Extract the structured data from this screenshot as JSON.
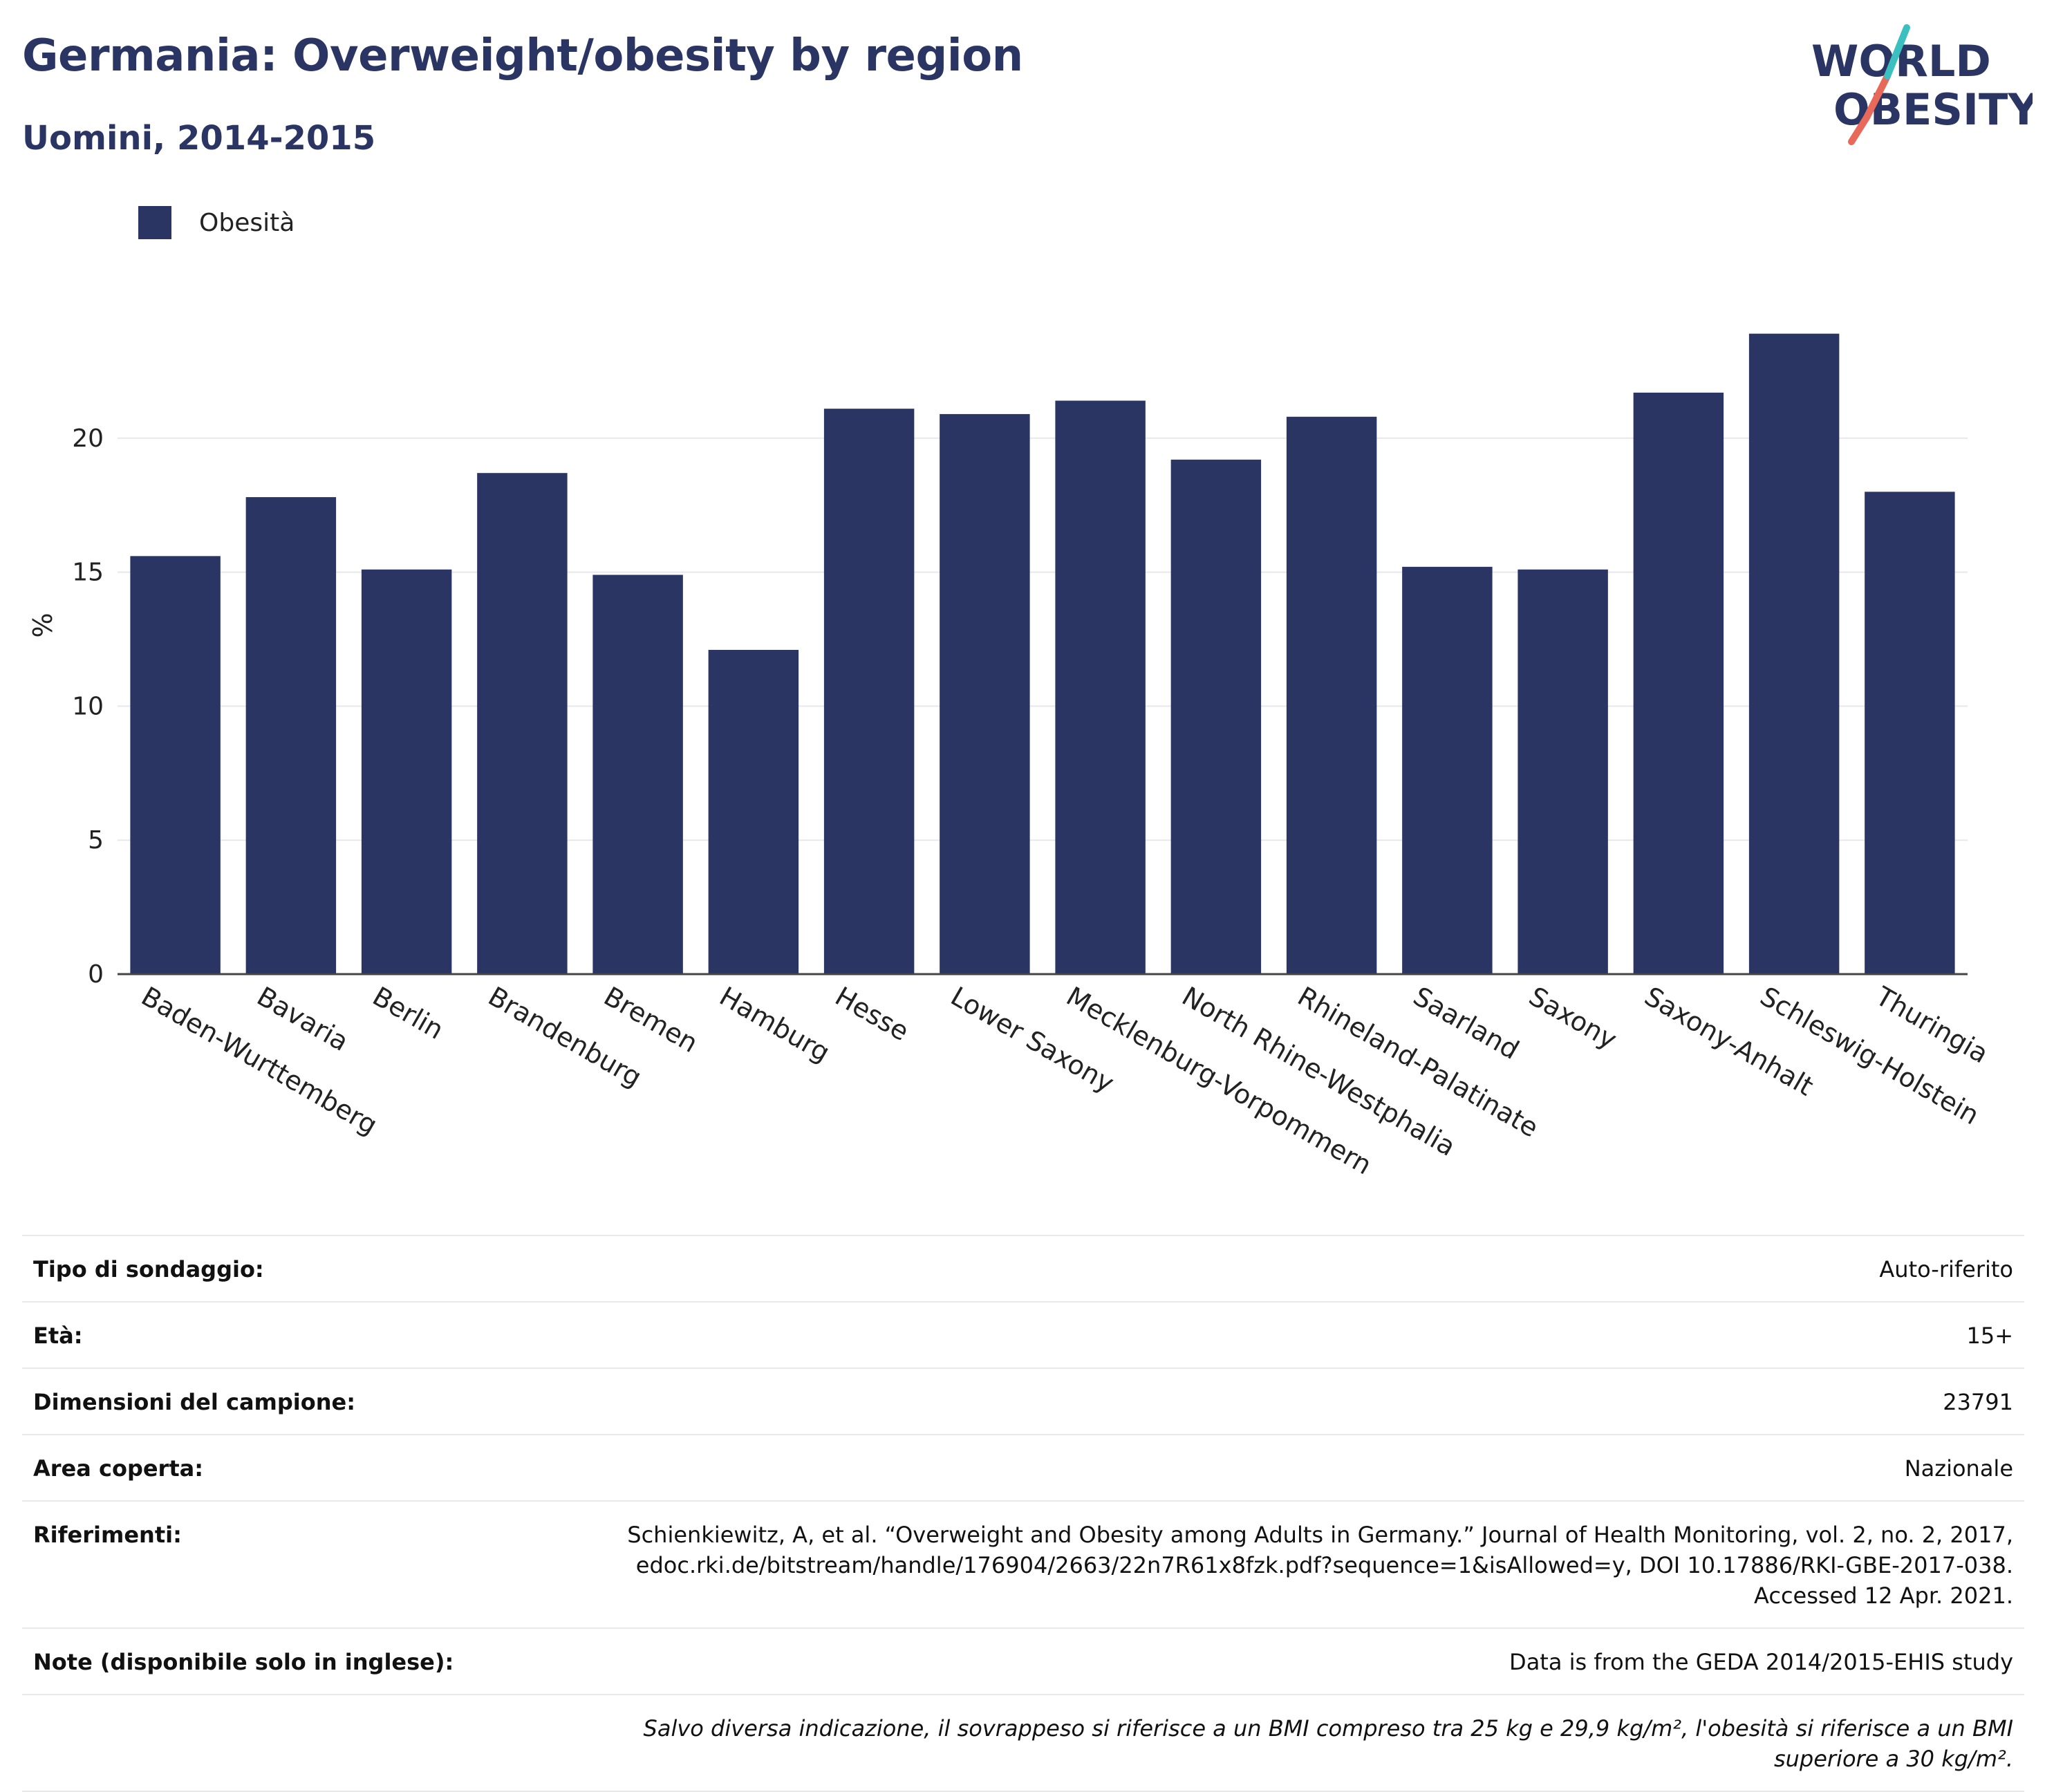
{
  "header": {
    "title": "Germania: Overweight/obesity by region",
    "subtitle": "Uomini, 2014-2015"
  },
  "logo": {
    "line1": "WORLD",
    "line2": "OBESITY",
    "colors": {
      "text": "#2a3563",
      "slash_teal": "#3bbfbf",
      "slash_red": "#e8685a"
    }
  },
  "legend": {
    "items": [
      {
        "label": "Obesità",
        "color": "#2a3563"
      }
    ]
  },
  "colors": {
    "bar": "#2a3563",
    "grid": "#e8e8ec",
    "axis": "#444444"
  },
  "chart_data": {
    "type": "bar",
    "ylabel": "%",
    "xlabel": "",
    "ylim": [
      0,
      25
    ],
    "yticks": [
      0,
      5,
      10,
      15,
      20
    ],
    "grid": true,
    "legend_position": "top-left",
    "categories": [
      "Baden-Wurttemberg",
      "Bavaria",
      "Berlin",
      "Brandenburg",
      "Bremen",
      "Hamburg",
      "Hesse",
      "Lower Saxony",
      "Mecklenburg-Vorpommern",
      "North Rhine-Westphalia",
      "Rhineland-Palatinate",
      "Saarland",
      "Saxony",
      "Saxony-Anhalt",
      "Schleswig-Holstein",
      "Thuringia"
    ],
    "series": [
      {
        "name": "Obesità",
        "values": [
          15.6,
          17.8,
          15.1,
          18.7,
          14.9,
          12.1,
          21.1,
          20.9,
          21.4,
          19.2,
          20.8,
          15.2,
          15.1,
          21.7,
          23.9,
          18.0
        ]
      }
    ]
  },
  "info": {
    "survey_type": {
      "label": "Tipo di sondaggio:",
      "value": "Auto-riferito"
    },
    "age": {
      "label": "Età:",
      "value": "15+"
    },
    "sample_size": {
      "label": "Dimensioni del campione:",
      "value": "23791"
    },
    "area": {
      "label": "Area coperta:",
      "value": "Nazionale"
    },
    "references": {
      "label": "Riferimenti:",
      "line1": "Schienkiewitz, A, et al. “Overweight and Obesity among Adults in Germany.” Journal of Health Monitoring, vol. 2, no. 2, 2017,",
      "line2": "edoc.rki.de/bitstream/handle/176904/2663/22n7R61x8fzk.pdf?sequence=1&isAllowed=y, DOI 10.17886/RKI-GBE-2017-038.",
      "line3": "Accessed 12 Apr. 2021."
    },
    "notes": {
      "label": "Note (disponibile solo in inglese):",
      "value": "Data is from the GEDA 2014/2015-EHIS study"
    },
    "footnote": "Salvo diversa indicazione, il sovrappeso si riferisce a un BMI compreso tra 25 kg e 29,9 kg/m², l'obesità si riferisce a un BMI superiore a 30 kg/m²."
  }
}
